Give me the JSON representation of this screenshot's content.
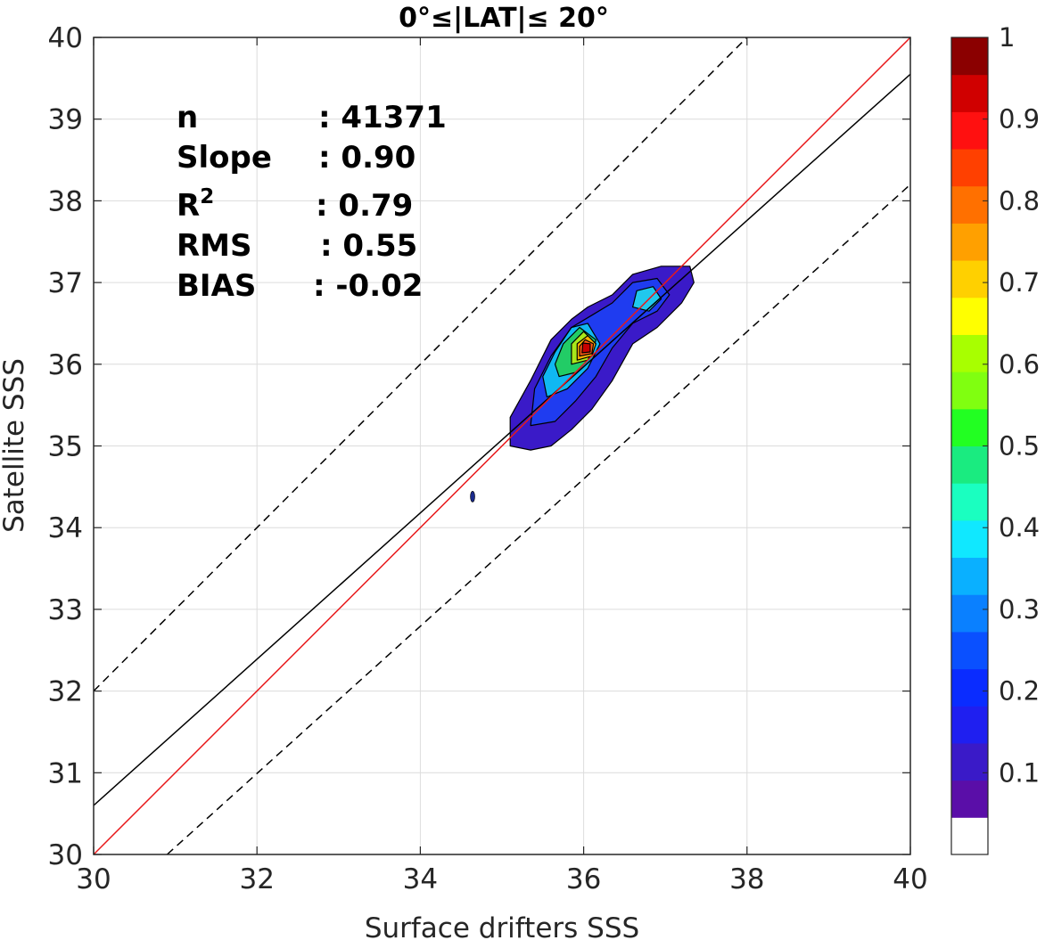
{
  "chart_data": {
    "type": "contour-scatter",
    "title": "0°≤|LAT|≤ 20°",
    "xlabel": "Surface drifters SSS",
    "ylabel": "Satellite SSS",
    "xlim": [
      30,
      40
    ],
    "ylim": [
      30,
      40
    ],
    "xticks": [
      "30",
      "32",
      "34",
      "36",
      "38",
      "40"
    ],
    "yticks": [
      "30",
      "31",
      "32",
      "33",
      "34",
      "35",
      "36",
      "37",
      "38",
      "39",
      "40"
    ],
    "grid": true,
    "stats": [
      {
        "label": "n",
        "value": ": 41371"
      },
      {
        "label": "Slope",
        "value": ": 0.90"
      },
      {
        "label": "R",
        "sup": "2",
        "value": ": 0.79"
      },
      {
        "label": "RMS",
        "value": ": 0.55"
      },
      {
        "label": "BIAS",
        "value": ": -0.02"
      }
    ],
    "lines": {
      "identity": {
        "x": [
          30,
          40
        ],
        "y": [
          30,
          40
        ],
        "color": "#e8191b"
      },
      "regression": {
        "x": [
          30,
          40
        ],
        "y": [
          30.6,
          39.55
        ],
        "color": "#000000"
      },
      "offset_upper": {
        "x": [
          30,
          39.0
        ],
        "y": [
          32.0,
          41.0
        ],
        "style": "dashed"
      },
      "offset_lower": {
        "x": [
          30.9,
          40
        ],
        "y": [
          30,
          38.2
        ],
        "style": "dashed"
      }
    },
    "density_levels": [
      {
        "level": 0.05,
        "color": "#3a1ac8",
        "polygon": [
          [
            35.1,
            35.0
          ],
          [
            35.35,
            34.95
          ],
          [
            35.6,
            35.0
          ],
          [
            35.85,
            35.2
          ],
          [
            36.1,
            35.45
          ],
          [
            36.35,
            35.8
          ],
          [
            36.6,
            36.25
          ],
          [
            36.9,
            36.45
          ],
          [
            37.2,
            36.75
          ],
          [
            37.35,
            37.0
          ],
          [
            37.3,
            37.2
          ],
          [
            36.95,
            37.2
          ],
          [
            36.6,
            37.1
          ],
          [
            36.35,
            36.85
          ],
          [
            36.05,
            36.7
          ],
          [
            35.85,
            36.55
          ],
          [
            35.6,
            36.3
          ],
          [
            35.35,
            35.8
          ],
          [
            35.1,
            35.35
          ]
        ]
      },
      {
        "level": 0.1,
        "color": "#1f3cf0",
        "polygon": [
          [
            35.35,
            35.25
          ],
          [
            35.65,
            35.3
          ],
          [
            35.9,
            35.55
          ],
          [
            36.15,
            35.85
          ],
          [
            36.35,
            36.2
          ],
          [
            36.6,
            36.5
          ],
          [
            36.9,
            36.65
          ],
          [
            37.05,
            36.85
          ],
          [
            36.9,
            37.05
          ],
          [
            36.6,
            37.0
          ],
          [
            36.35,
            36.75
          ],
          [
            36.1,
            36.6
          ],
          [
            35.85,
            36.45
          ],
          [
            35.6,
            36.1
          ],
          [
            35.4,
            35.7
          ]
        ]
      },
      {
        "level": 0.3,
        "color": "#10b8f2",
        "polygon": [
          [
            35.55,
            35.6
          ],
          [
            35.8,
            35.7
          ],
          [
            36.05,
            35.95
          ],
          [
            36.2,
            36.25
          ],
          [
            36.05,
            36.5
          ],
          [
            35.85,
            36.45
          ],
          [
            35.65,
            36.15
          ],
          [
            35.5,
            35.85
          ]
        ]
      },
      {
        "level": 0.35,
        "color": "#20c8ee",
        "polygon": [
          [
            36.6,
            36.7
          ],
          [
            36.8,
            36.65
          ],
          [
            36.95,
            36.8
          ],
          [
            36.85,
            36.95
          ],
          [
            36.65,
            36.9
          ]
        ]
      },
      {
        "level": 0.45,
        "color": "#22cc66",
        "polygon": [
          [
            35.7,
            35.85
          ],
          [
            35.9,
            35.9
          ],
          [
            36.1,
            36.1
          ],
          [
            36.15,
            36.3
          ],
          [
            35.95,
            36.45
          ],
          [
            35.75,
            36.25
          ],
          [
            35.65,
            36.0
          ]
        ]
      },
      {
        "level": 0.6,
        "color": "#a8e81a",
        "polygon": [
          [
            35.85,
            36.0
          ],
          [
            36.05,
            36.05
          ],
          [
            36.15,
            36.25
          ],
          [
            36.0,
            36.4
          ],
          [
            35.85,
            36.25
          ]
        ]
      },
      {
        "level": 0.75,
        "color": "#ffb000",
        "polygon": [
          [
            35.92,
            36.05
          ],
          [
            36.1,
            36.1
          ],
          [
            36.15,
            36.25
          ],
          [
            36.05,
            36.35
          ],
          [
            35.92,
            36.25
          ]
        ]
      },
      {
        "level": 0.85,
        "color": "#ff5a14",
        "polygon": [
          [
            35.95,
            36.1
          ],
          [
            36.1,
            36.13
          ],
          [
            36.12,
            36.25
          ],
          [
            36.02,
            36.3
          ],
          [
            35.95,
            36.22
          ]
        ]
      },
      {
        "level": 0.95,
        "color": "#c80000",
        "polygon": [
          [
            35.98,
            36.14
          ],
          [
            36.08,
            36.15
          ],
          [
            36.08,
            36.25
          ],
          [
            35.99,
            36.26
          ]
        ]
      }
    ],
    "isolated_blob": {
      "x": 34.64,
      "y": 34.38,
      "color": "#1a2a8c"
    },
    "colorbar": {
      "ticks": [
        "0.1",
        "0.2",
        "0.3",
        "0.4",
        "0.5",
        "0.6",
        "0.7",
        "0.8",
        "0.9",
        "1"
      ],
      "range": [
        0,
        1
      ],
      "colors": [
        "#ffffff",
        "#5a0ea8",
        "#3a1ac8",
        "#1f1ff0",
        "#0a2cff",
        "#0a50ff",
        "#0a80ff",
        "#0ab0ff",
        "#10e8ff",
        "#1affc0",
        "#1aeb80",
        "#22ff22",
        "#80ff10",
        "#a8ff00",
        "#ffff00",
        "#ffd000",
        "#ffa000",
        "#ff7000",
        "#ff4000",
        "#ff1010",
        "#d00000",
        "#8b0000"
      ]
    }
  }
}
